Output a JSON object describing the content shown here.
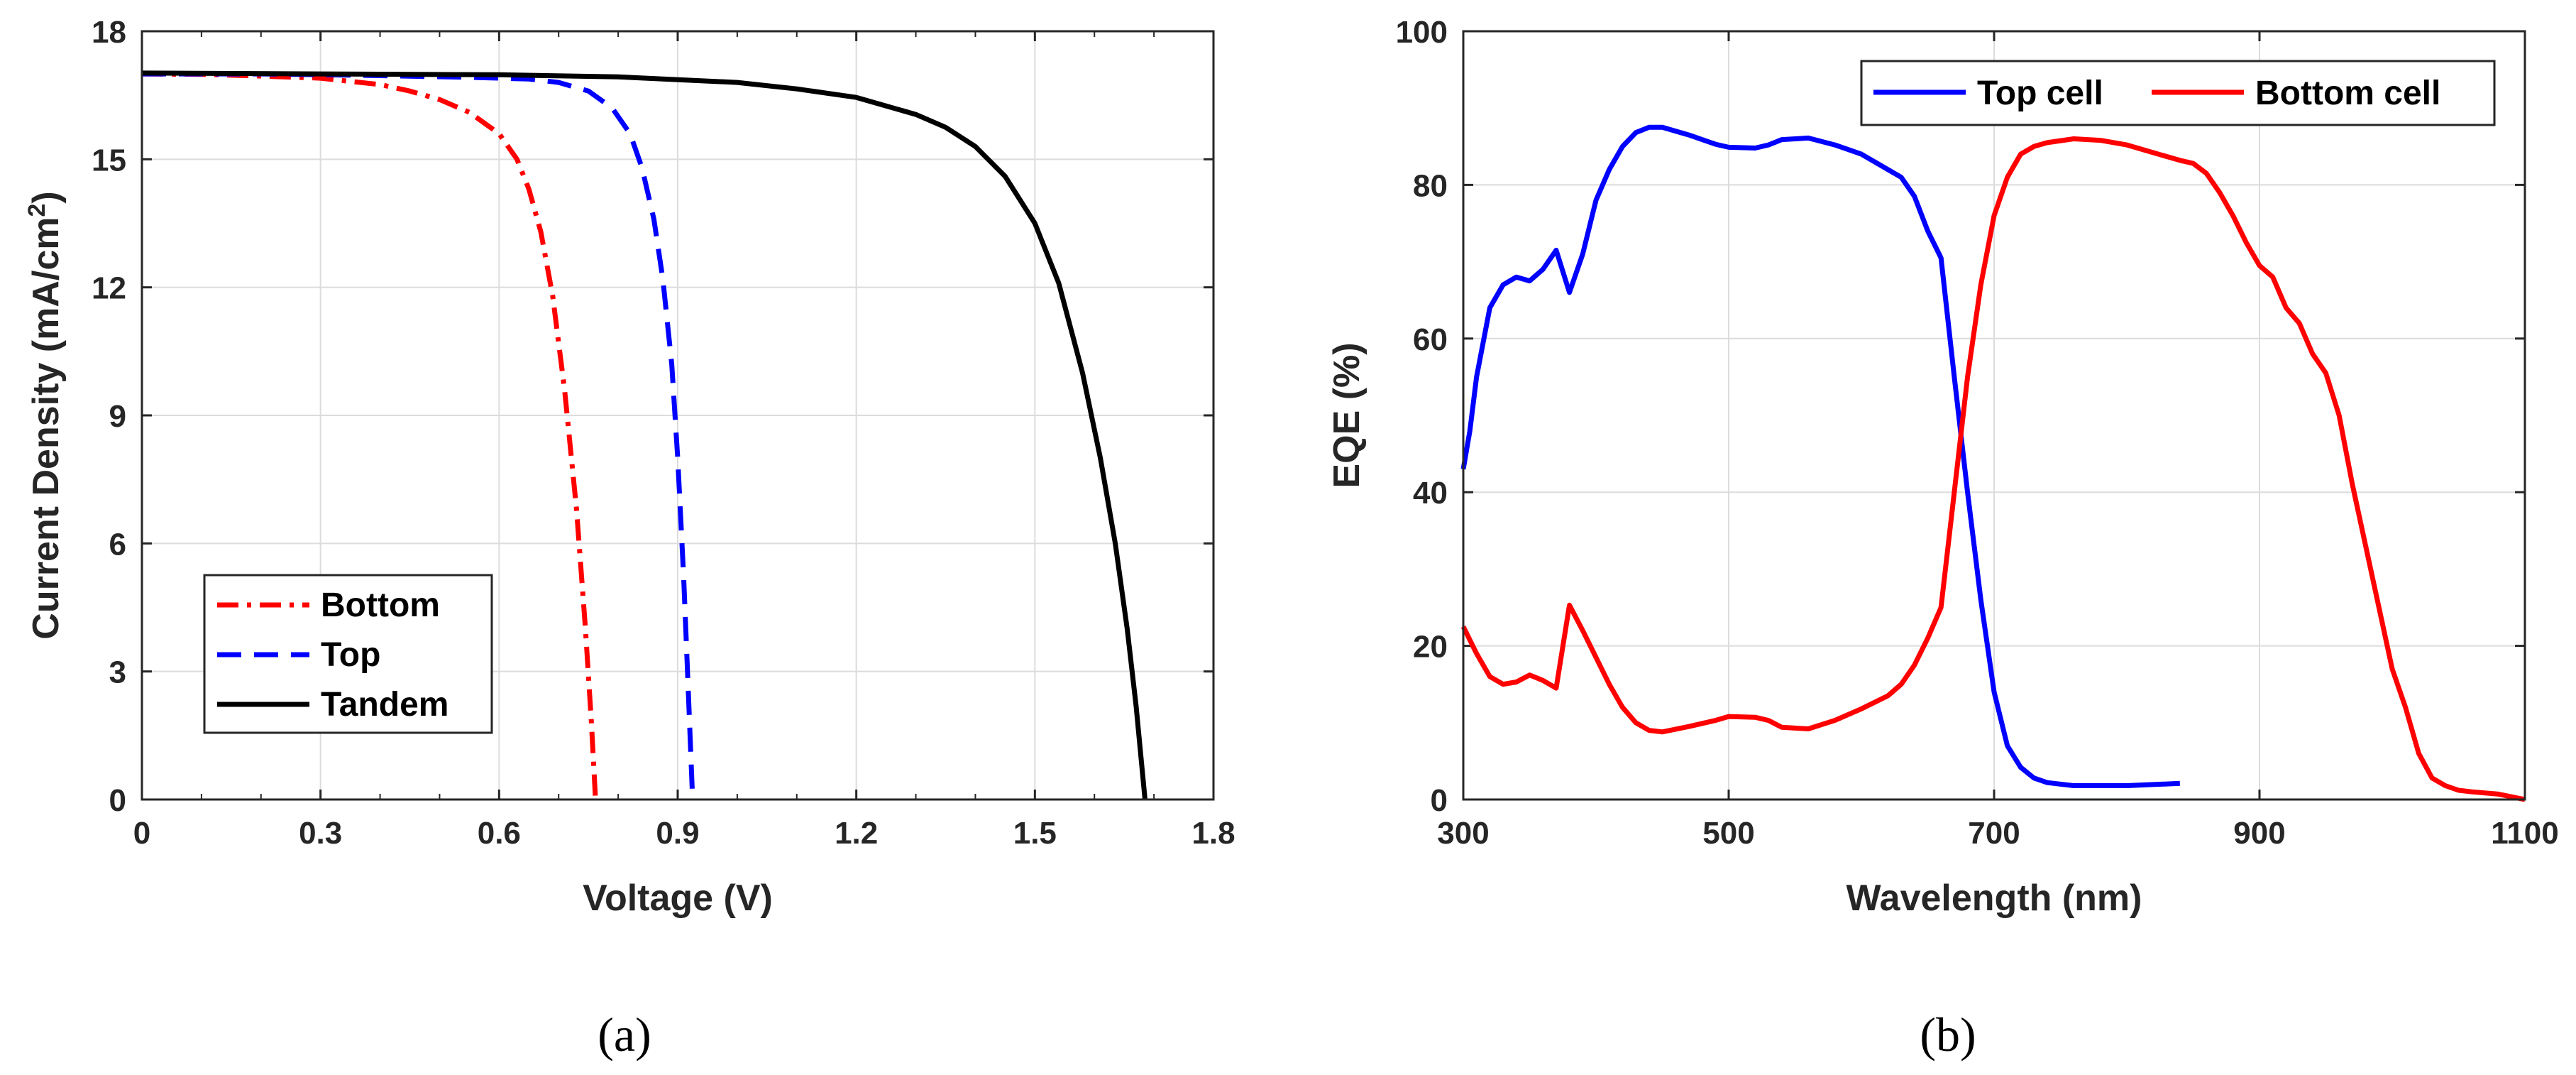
{
  "chart_data": [
    {
      "type": "line",
      "caption": "(a)",
      "xlabel": "Voltage (V)",
      "ylabel": "Current Density (mA/cm",
      "ylabel_sup": "2",
      "ylabel_end": ")",
      "xlim": [
        0,
        1.8
      ],
      "ylim": [
        0,
        18
      ],
      "xticks": [
        "0",
        "0.3",
        "0.6",
        "0.9",
        "1.2",
        "1.5",
        "1.8"
      ],
      "yticks": [
        "0",
        "3",
        "6",
        "9",
        "12",
        "15",
        "18"
      ],
      "grid": true,
      "legend_position": "bottom-left",
      "series": [
        {
          "name": "Bottom",
          "color": "#ff0000",
          "style": "dash-dot",
          "points": [
            [
              0,
              17.0
            ],
            [
              0.1,
              16.99
            ],
            [
              0.2,
              16.95
            ],
            [
              0.3,
              16.9
            ],
            [
              0.4,
              16.75
            ],
            [
              0.45,
              16.6
            ],
            [
              0.5,
              16.4
            ],
            [
              0.55,
              16.1
            ],
            [
              0.6,
              15.6
            ],
            [
              0.63,
              15.0
            ],
            [
              0.65,
              14.3
            ],
            [
              0.67,
              13.3
            ],
            [
              0.69,
              11.8
            ],
            [
              0.71,
              9.6
            ],
            [
              0.73,
              6.8
            ],
            [
              0.745,
              4.0
            ],
            [
              0.755,
              1.8
            ],
            [
              0.762,
              0.0
            ]
          ]
        },
        {
          "name": "Top",
          "color": "#0000ff",
          "style": "dashed",
          "points": [
            [
              0,
              17.0
            ],
            [
              0.2,
              17.0
            ],
            [
              0.4,
              16.96
            ],
            [
              0.55,
              16.92
            ],
            [
              0.65,
              16.88
            ],
            [
              0.7,
              16.8
            ],
            [
              0.75,
              16.6
            ],
            [
              0.79,
              16.2
            ],
            [
              0.82,
              15.6
            ],
            [
              0.84,
              14.8
            ],
            [
              0.86,
              13.6
            ],
            [
              0.875,
              12.2
            ],
            [
              0.89,
              10.2
            ],
            [
              0.9,
              8.0
            ],
            [
              0.91,
              5.2
            ],
            [
              0.917,
              2.8
            ],
            [
              0.925,
              0.0
            ]
          ]
        },
        {
          "name": "Tandem",
          "color": "#000000",
          "style": "solid",
          "points": [
            [
              0,
              17.02
            ],
            [
              0.3,
              17.0
            ],
            [
              0.6,
              16.98
            ],
            [
              0.8,
              16.93
            ],
            [
              1.0,
              16.8
            ],
            [
              1.1,
              16.65
            ],
            [
              1.2,
              16.45
            ],
            [
              1.3,
              16.05
            ],
            [
              1.35,
              15.75
            ],
            [
              1.4,
              15.3
            ],
            [
              1.45,
              14.6
            ],
            [
              1.5,
              13.5
            ],
            [
              1.54,
              12.1
            ],
            [
              1.58,
              10.0
            ],
            [
              1.61,
              8.0
            ],
            [
              1.635,
              6.0
            ],
            [
              1.655,
              4.0
            ],
            [
              1.67,
              2.2
            ],
            [
              1.685,
              0.0
            ]
          ]
        }
      ]
    },
    {
      "type": "line",
      "caption": "(b)",
      "xlabel": "Wavelength (nm)",
      "ylabel": "EQE (%)",
      "xlim": [
        300,
        1100
      ],
      "ylim": [
        0,
        100
      ],
      "xticks": [
        "300",
        "500",
        "700",
        "900",
        "1100"
      ],
      "yticks": [
        "0",
        "20",
        "40",
        "60",
        "80",
        "100"
      ],
      "grid": true,
      "legend_position": "top-right",
      "series": [
        {
          "name": "Top cell",
          "color": "#0000ff",
          "style": "solid",
          "points": [
            [
              300,
              43
            ],
            [
              305,
              48
            ],
            [
              310,
              55
            ],
            [
              320,
              64
            ],
            [
              330,
              67
            ],
            [
              340,
              68
            ],
            [
              350,
              67.5
            ],
            [
              360,
              69
            ],
            [
              370,
              71.5
            ],
            [
              380,
              66
            ],
            [
              390,
              71
            ],
            [
              400,
              78
            ],
            [
              410,
              82
            ],
            [
              420,
              85
            ],
            [
              430,
              86.8
            ],
            [
              440,
              87.5
            ],
            [
              450,
              87.5
            ],
            [
              470,
              86.5
            ],
            [
              490,
              85.3
            ],
            [
              500,
              84.9
            ],
            [
              520,
              84.8
            ],
            [
              530,
              85.2
            ],
            [
              540,
              85.9
            ],
            [
              560,
              86.1
            ],
            [
              580,
              85.2
            ],
            [
              600,
              84
            ],
            [
              620,
              82
            ],
            [
              630,
              81
            ],
            [
              640,
              78.5
            ],
            [
              650,
              74
            ],
            [
              660,
              70.5
            ],
            [
              670,
              55
            ],
            [
              680,
              40
            ],
            [
              690,
              26
            ],
            [
              700,
              14
            ],
            [
              710,
              7
            ],
            [
              720,
              4.2
            ],
            [
              730,
              2.8
            ],
            [
              740,
              2.2
            ],
            [
              760,
              1.8
            ],
            [
              800,
              1.8
            ],
            [
              840,
              2.1
            ]
          ]
        },
        {
          "name": "Bottom cell",
          "color": "#ff0000",
          "style": "solid",
          "points": [
            [
              300,
              22.5
            ],
            [
              310,
              19
            ],
            [
              320,
              16
            ],
            [
              330,
              15
            ],
            [
              340,
              15.3
            ],
            [
              350,
              16.2
            ],
            [
              360,
              15.5
            ],
            [
              370,
              14.5
            ],
            [
              380,
              25.3
            ],
            [
              390,
              22
            ],
            [
              400,
              18.5
            ],
            [
              410,
              15
            ],
            [
              420,
              12
            ],
            [
              430,
              10
            ],
            [
              440,
              9
            ],
            [
              450,
              8.8
            ],
            [
              470,
              9.5
            ],
            [
              490,
              10.3
            ],
            [
              500,
              10.8
            ],
            [
              520,
              10.7
            ],
            [
              530,
              10.3
            ],
            [
              540,
              9.4
            ],
            [
              560,
              9.2
            ],
            [
              580,
              10.3
            ],
            [
              600,
              11.8
            ],
            [
              620,
              13.5
            ],
            [
              630,
              15
            ],
            [
              640,
              17.5
            ],
            [
              650,
              21
            ],
            [
              660,
              25
            ],
            [
              670,
              40
            ],
            [
              680,
              55
            ],
            [
              690,
              67
            ],
            [
              700,
              76
            ],
            [
              710,
              81
            ],
            [
              720,
              84
            ],
            [
              730,
              85
            ],
            [
              740,
              85.5
            ],
            [
              760,
              86
            ],
            [
              780,
              85.8
            ],
            [
              800,
              85.2
            ],
            [
              820,
              84.2
            ],
            [
              840,
              83.2
            ],
            [
              850,
              82.8
            ],
            [
              860,
              81.5
            ],
            [
              870,
              79
            ],
            [
              880,
              76
            ],
            [
              890,
              72.5
            ],
            [
              900,
              69.5
            ],
            [
              910,
              68
            ],
            [
              920,
              64
            ],
            [
              930,
              62
            ],
            [
              940,
              58
            ],
            [
              950,
              55.5
            ],
            [
              960,
              50
            ],
            [
              970,
              41
            ],
            [
              980,
              33
            ],
            [
              990,
              25
            ],
            [
              1000,
              17
            ],
            [
              1010,
              12
            ],
            [
              1020,
              6
            ],
            [
              1030,
              2.8
            ],
            [
              1040,
              1.8
            ],
            [
              1050,
              1.2
            ],
            [
              1060,
              1
            ],
            [
              1080,
              0.7
            ],
            [
              1100,
              0
            ]
          ]
        }
      ]
    }
  ]
}
